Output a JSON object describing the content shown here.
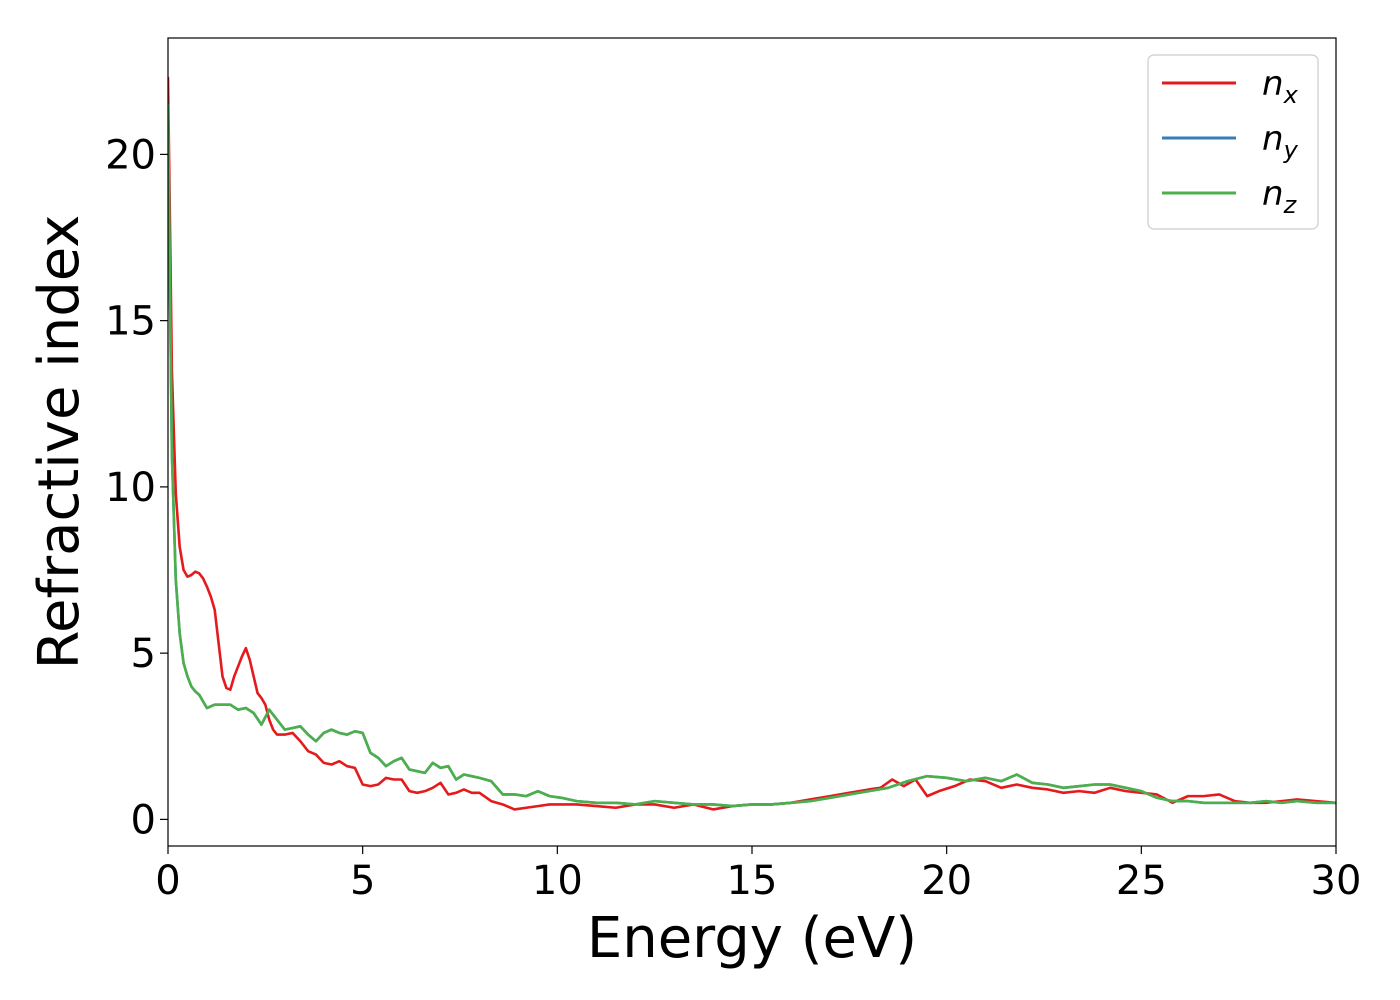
{
  "chart_data": {
    "type": "line",
    "xlabel": "Energy (eV)",
    "ylabel": "Refractive index",
    "xlim": [
      0,
      30
    ],
    "ylim": [
      -0.8,
      23.5
    ],
    "xticks": [
      0,
      5,
      10,
      15,
      20,
      25,
      30
    ],
    "yticks": [
      0,
      5,
      10,
      15,
      20
    ],
    "grid": false,
    "legend_position": "top-right",
    "series": [
      {
        "name": "n",
        "subscript": "x",
        "color": "#e41a1c",
        "x": [
          0,
          0.05,
          0.1,
          0.2,
          0.3,
          0.4,
          0.5,
          0.6,
          0.7,
          0.8,
          0.9,
          1.0,
          1.1,
          1.2,
          1.3,
          1.4,
          1.5,
          1.6,
          1.7,
          1.8,
          1.9,
          2.0,
          2.1,
          2.2,
          2.3,
          2.4,
          2.5,
          2.6,
          2.7,
          2.8,
          3.0,
          3.2,
          3.4,
          3.6,
          3.8,
          4.0,
          4.2,
          4.4,
          4.6,
          4.8,
          5.0,
          5.2,
          5.4,
          5.6,
          5.8,
          6.0,
          6.2,
          6.4,
          6.6,
          6.8,
          7.0,
          7.2,
          7.4,
          7.6,
          7.8,
          8.0,
          8.3,
          8.6,
          8.9,
          9.2,
          9.5,
          9.8,
          10.1,
          10.5,
          11.0,
          11.5,
          12.0,
          12.5,
          13.0,
          13.5,
          14.0,
          14.5,
          15.0,
          15.5,
          16.0,
          16.5,
          17.0,
          17.5,
          18.0,
          18.3,
          18.6,
          18.9,
          19.2,
          19.5,
          19.8,
          20.2,
          20.6,
          21.0,
          21.4,
          21.8,
          22.2,
          22.6,
          23.0,
          23.4,
          23.8,
          24.2,
          24.6,
          25.0,
          25.4,
          25.8,
          26.2,
          26.6,
          27.0,
          27.4,
          27.8,
          28.2,
          28.6,
          29.0,
          29.5,
          30.0
        ],
        "y": [
          22.3,
          18.0,
          13.5,
          9.8,
          8.2,
          7.5,
          7.3,
          7.35,
          7.45,
          7.4,
          7.25,
          7.0,
          6.7,
          6.3,
          5.3,
          4.3,
          3.95,
          3.9,
          4.3,
          4.6,
          4.9,
          5.15,
          4.8,
          4.3,
          3.8,
          3.65,
          3.45,
          3.0,
          2.7,
          2.55,
          2.55,
          2.6,
          2.35,
          2.05,
          1.95,
          1.7,
          1.65,
          1.75,
          1.6,
          1.55,
          1.05,
          1.0,
          1.05,
          1.25,
          1.2,
          1.2,
          0.85,
          0.8,
          0.85,
          0.95,
          1.1,
          0.75,
          0.8,
          0.9,
          0.8,
          0.8,
          0.55,
          0.45,
          0.3,
          0.35,
          0.4,
          0.45,
          0.45,
          0.45,
          0.4,
          0.35,
          0.45,
          0.45,
          0.35,
          0.45,
          0.3,
          0.4,
          0.45,
          0.45,
          0.5,
          0.6,
          0.7,
          0.8,
          0.9,
          0.95,
          1.2,
          1.0,
          1.2,
          0.7,
          0.85,
          1.0,
          1.2,
          1.15,
          0.95,
          1.05,
          0.95,
          0.9,
          0.8,
          0.85,
          0.8,
          0.95,
          0.85,
          0.8,
          0.75,
          0.5,
          0.7,
          0.7,
          0.75,
          0.55,
          0.5,
          0.5,
          0.55,
          0.6,
          0.55,
          0.5
        ]
      },
      {
        "name": "n",
        "subscript": "y",
        "color": "#377eb8",
        "x": [
          0,
          0.05,
          0.1,
          0.2,
          0.3,
          0.4,
          0.5,
          0.6,
          0.7,
          0.8,
          0.9,
          1.0,
          1.1,
          1.2,
          1.4,
          1.6,
          1.8,
          2.0,
          2.2,
          2.4,
          2.6,
          2.8,
          3.0,
          3.2,
          3.4,
          3.6,
          3.8,
          4.0,
          4.2,
          4.4,
          4.6,
          4.8,
          5.0,
          5.2,
          5.4,
          5.6,
          5.8,
          6.0,
          6.2,
          6.4,
          6.6,
          6.8,
          7.0,
          7.2,
          7.4,
          7.6,
          7.8,
          8.0,
          8.3,
          8.6,
          8.9,
          9.2,
          9.5,
          9.8,
          10.1,
          10.5,
          11.0,
          11.5,
          12.0,
          12.5,
          13.0,
          13.5,
          14.0,
          14.5,
          15.0,
          15.5,
          16.0,
          16.5,
          17.0,
          17.5,
          18.0,
          18.5,
          19.0,
          19.5,
          20.0,
          20.5,
          21.0,
          21.4,
          21.8,
          22.2,
          22.6,
          23.0,
          23.4,
          23.8,
          24.2,
          24.6,
          25.0,
          25.4,
          25.8,
          26.2,
          26.6,
          27.0,
          27.4,
          27.8,
          28.2,
          28.6,
          29.0,
          29.5,
          30.0
        ],
        "y": [
          21.5,
          16.0,
          11.0,
          7.2,
          5.6,
          4.7,
          4.3,
          4.0,
          3.85,
          3.75,
          3.55,
          3.35,
          3.4,
          3.45,
          3.45,
          3.45,
          3.3,
          3.35,
          3.2,
          2.85,
          3.3,
          3.0,
          2.7,
          2.75,
          2.8,
          2.55,
          2.35,
          2.6,
          2.7,
          2.6,
          2.55,
          2.65,
          2.6,
          2.0,
          1.85,
          1.6,
          1.75,
          1.85,
          1.5,
          1.45,
          1.4,
          1.7,
          1.55,
          1.6,
          1.2,
          1.35,
          1.3,
          1.25,
          1.15,
          0.75,
          0.75,
          0.7,
          0.85,
          0.7,
          0.65,
          0.55,
          0.5,
          0.5,
          0.45,
          0.55,
          0.5,
          0.45,
          0.45,
          0.4,
          0.45,
          0.45,
          0.5,
          0.55,
          0.65,
          0.75,
          0.85,
          0.95,
          1.15,
          1.3,
          1.25,
          1.15,
          1.25,
          1.15,
          1.35,
          1.1,
          1.05,
          0.95,
          1.0,
          1.05,
          1.05,
          0.95,
          0.85,
          0.65,
          0.55,
          0.55,
          0.5,
          0.5,
          0.5,
          0.5,
          0.55,
          0.5,
          0.55,
          0.5,
          0.5
        ]
      },
      {
        "name": "n",
        "subscript": "z",
        "color": "#4daf4a",
        "x": [
          0,
          0.05,
          0.1,
          0.2,
          0.3,
          0.4,
          0.5,
          0.6,
          0.7,
          0.8,
          0.9,
          1.0,
          1.1,
          1.2,
          1.4,
          1.6,
          1.8,
          2.0,
          2.2,
          2.4,
          2.6,
          2.8,
          3.0,
          3.2,
          3.4,
          3.6,
          3.8,
          4.0,
          4.2,
          4.4,
          4.6,
          4.8,
          5.0,
          5.2,
          5.4,
          5.6,
          5.8,
          6.0,
          6.2,
          6.4,
          6.6,
          6.8,
          7.0,
          7.2,
          7.4,
          7.6,
          7.8,
          8.0,
          8.3,
          8.6,
          8.9,
          9.2,
          9.5,
          9.8,
          10.1,
          10.5,
          11.0,
          11.5,
          12.0,
          12.5,
          13.0,
          13.5,
          14.0,
          14.5,
          15.0,
          15.5,
          16.0,
          16.5,
          17.0,
          17.5,
          18.0,
          18.5,
          19.0,
          19.5,
          20.0,
          20.5,
          21.0,
          21.4,
          21.8,
          22.2,
          22.6,
          23.0,
          23.4,
          23.8,
          24.2,
          24.6,
          25.0,
          25.4,
          25.8,
          26.2,
          26.6,
          27.0,
          27.4,
          27.8,
          28.2,
          28.6,
          29.0,
          29.5,
          30.0
        ],
        "y": [
          21.5,
          16.0,
          11.0,
          7.2,
          5.6,
          4.7,
          4.3,
          4.0,
          3.85,
          3.75,
          3.55,
          3.35,
          3.4,
          3.45,
          3.45,
          3.45,
          3.3,
          3.35,
          3.2,
          2.85,
          3.3,
          3.0,
          2.7,
          2.75,
          2.8,
          2.55,
          2.35,
          2.6,
          2.7,
          2.6,
          2.55,
          2.65,
          2.6,
          2.0,
          1.85,
          1.6,
          1.75,
          1.85,
          1.5,
          1.45,
          1.4,
          1.7,
          1.55,
          1.6,
          1.2,
          1.35,
          1.3,
          1.25,
          1.15,
          0.75,
          0.75,
          0.7,
          0.85,
          0.7,
          0.65,
          0.55,
          0.5,
          0.5,
          0.45,
          0.55,
          0.5,
          0.45,
          0.45,
          0.4,
          0.45,
          0.45,
          0.5,
          0.55,
          0.65,
          0.75,
          0.85,
          0.95,
          1.15,
          1.3,
          1.25,
          1.15,
          1.25,
          1.15,
          1.35,
          1.1,
          1.05,
          0.95,
          1.0,
          1.05,
          1.05,
          0.95,
          0.85,
          0.65,
          0.55,
          0.55,
          0.5,
          0.5,
          0.5,
          0.5,
          0.55,
          0.5,
          0.55,
          0.5,
          0.5
        ]
      }
    ]
  }
}
